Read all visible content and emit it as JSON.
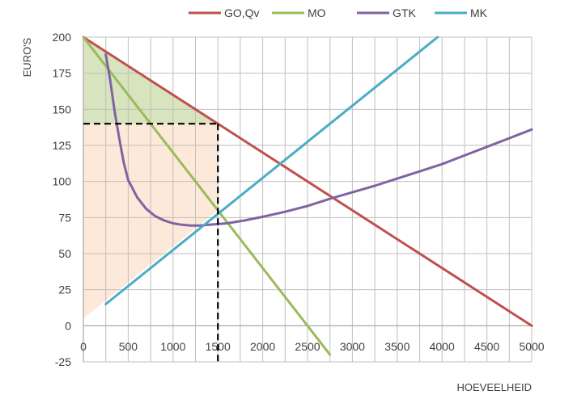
{
  "chart_data": {
    "type": "line",
    "xlabel": "HOEVEELHEID",
    "ylabel": "EURO'S",
    "xlim": [
      0,
      5000
    ],
    "ylim": [
      -25,
      200
    ],
    "x_ticks": [
      0,
      500,
      1000,
      1500,
      2000,
      2500,
      3000,
      3500,
      4000,
      4500,
      5000
    ],
    "x_tick_labels": [
      "0",
      "500",
      "1000",
      "1500",
      "2000",
      "2500",
      "3000",
      "3500",
      "4000",
      "4500",
      "5000"
    ],
    "y_ticks": [
      -25,
      0,
      25,
      50,
      75,
      100,
      125,
      150,
      175,
      200
    ],
    "y_tick_labels": [
      "-25",
      "0",
      "25",
      "50",
      "75",
      "100",
      "125",
      "150",
      "175",
      "200"
    ],
    "x_gridline_step": 250,
    "grid": true,
    "legend_position": "top",
    "series": [
      {
        "name": "GO,Qv",
        "color": "#c0504d",
        "points": [
          [
            0,
            200
          ],
          [
            5000,
            0
          ]
        ]
      },
      {
        "name": "MO",
        "color": "#9bbb59",
        "points": [
          [
            0,
            200
          ],
          [
            2750,
            -20
          ]
        ]
      },
      {
        "name": "GTK",
        "color": "#8064a2",
        "points": [
          [
            250,
            188
          ],
          [
            300,
            170
          ],
          [
            350,
            148
          ],
          [
            400,
            130
          ],
          [
            450,
            113
          ],
          [
            500,
            101
          ],
          [
            600,
            89
          ],
          [
            700,
            81
          ],
          [
            800,
            76
          ],
          [
            900,
            73
          ],
          [
            1000,
            71
          ],
          [
            1100,
            70
          ],
          [
            1200,
            69.5
          ],
          [
            1300,
            69.5
          ],
          [
            1400,
            70
          ],
          [
            1500,
            70.5
          ],
          [
            1600,
            71
          ],
          [
            1800,
            73
          ],
          [
            2000,
            75.5
          ],
          [
            2250,
            79
          ],
          [
            2500,
            83
          ],
          [
            2750,
            88
          ],
          [
            3000,
            92.5
          ],
          [
            3250,
            97
          ],
          [
            3500,
            102
          ],
          [
            3750,
            107
          ],
          [
            4000,
            112
          ],
          [
            4250,
            118
          ],
          [
            4500,
            124
          ],
          [
            4750,
            130
          ],
          [
            5000,
            136
          ]
        ]
      },
      {
        "name": "MK",
        "color": "#4bacc6",
        "points": [
          [
            250,
            15
          ],
          [
            3950,
            200
          ]
        ]
      }
    ],
    "annotations": {
      "optimum": {
        "x": 1500,
        "y": 140,
        "style": "dashed",
        "color": "#000000"
      },
      "consumer_surplus": {
        "fill": "#d7e4bd",
        "points": [
          [
            0,
            200
          ],
          [
            1500,
            140
          ],
          [
            0,
            140
          ]
        ]
      },
      "producer_area": {
        "fill": "#fde9d9",
        "points": [
          [
            0,
            140
          ],
          [
            1500,
            140
          ],
          [
            1500,
            80
          ],
          [
            0,
            5
          ]
        ]
      }
    }
  }
}
